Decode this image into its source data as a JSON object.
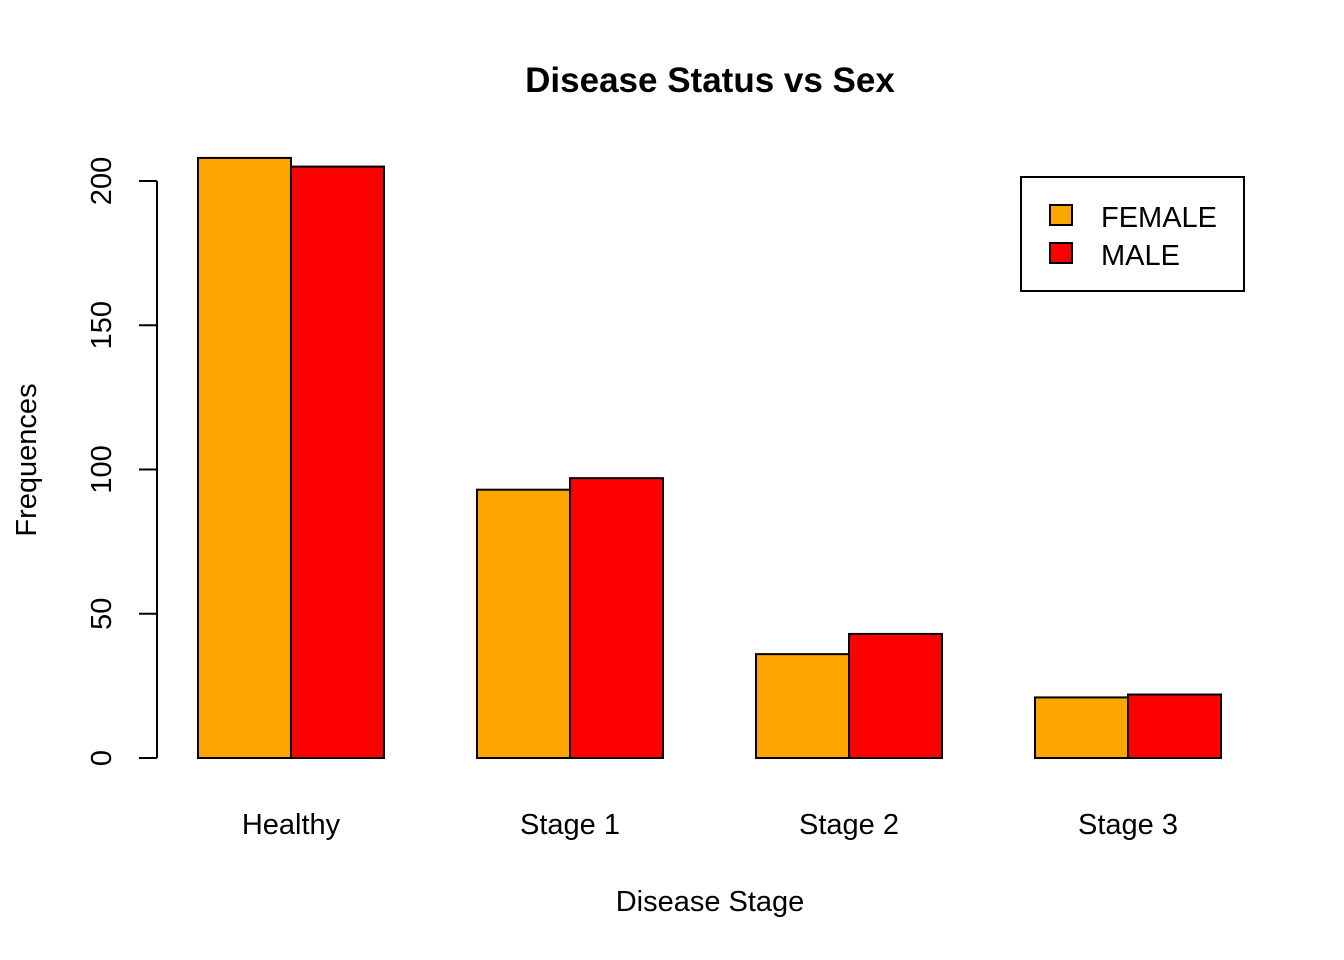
{
  "chart_data": {
    "type": "bar",
    "title": "Disease Status vs Sex",
    "xlabel": "Disease Stage",
    "ylabel": "Frequences",
    "categories": [
      "Healthy",
      "Stage 1",
      "Stage 2",
      "Stage 3"
    ],
    "series": [
      {
        "name": "FEMALE",
        "color": "#FFA500",
        "values": [
          208,
          93,
          36,
          21
        ]
      },
      {
        "name": "MALE",
        "color": "#FF0000",
        "values": [
          205,
          97,
          43,
          22
        ]
      }
    ],
    "yticks": [
      "0",
      "50",
      "100",
      "150",
      "200"
    ],
    "ylim": [
      0,
      200
    ],
    "grid": false,
    "legend_position": "top-right"
  }
}
